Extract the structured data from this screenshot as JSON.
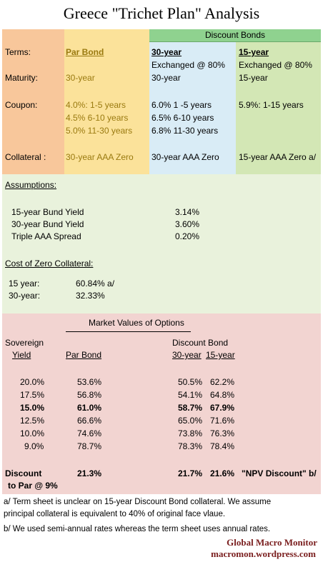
{
  "title": "Greece  \"Trichet Plan\" Analysis",
  "colors": {
    "labels_col": "#f8c79b",
    "par_col": "#fbe29a",
    "dc30_col": "#d9ecf6",
    "dc15_col": "#d3e7b5",
    "discount_header": "#8fd28f",
    "assumptions_bg": "#e9f2dc",
    "market_bg": "#f2d4d1"
  },
  "terms": {
    "header_discount": "Discount Bonds",
    "label_terms": "Terms:",
    "par_bond": "Par Bond",
    "dc30_label": "30-year",
    "dc15_label": "15-year",
    "dc30_exchanged": "Exchanged @  80%",
    "dc15_exchanged": "Exchanged @  80%",
    "label_maturity": "Maturity:",
    "par_maturity": "30-year",
    "dc30_maturity": "30-year",
    "dc15_maturity": "15-year",
    "label_coupon": "Coupon:",
    "par_coupons": [
      "4.0%:  1-5 years",
      "4.5%    6-10 years",
      "5.0%   11-30 years"
    ],
    "dc30_coupons": [
      "6.0%  1 -5 years",
      "6.5%  6-10 years",
      "6.8%  11-30 years"
    ],
    "dc15_coupon": "5.9%:  1-15 years",
    "label_collateral": "Collateral :",
    "par_collateral": "30-year AAA Zero",
    "dc30_collateral": "30-year AAA Zero",
    "dc15_collateral": "15-year AAA Zero a/"
  },
  "assumptions": {
    "heading": "Assumptions:",
    "rows": [
      {
        "label": "15-year Bund Yield",
        "value": "3.14%"
      },
      {
        "label": "30-year Bund Yield",
        "value": "3.60%"
      },
      {
        "label": "Triple AAA Spread",
        "value": "0.20%"
      }
    ],
    "cost_heading": "Cost of Zero Collateral:",
    "cost_rows": [
      {
        "label": "15 year:",
        "value": "60.84%  a/"
      },
      {
        "label": "30-year:",
        "value": "32.33%"
      }
    ]
  },
  "market": {
    "heading": "Market Values of Options",
    "sovereign": "Sovereign",
    "yield": "Yield",
    "par_bond": "Par Bond",
    "discount_bond": "Discount Bond",
    "col30": "30-year",
    "col15": "15-year",
    "rows": [
      {
        "yield": "20.0%",
        "par": "53.6%",
        "d30": "50.5%",
        "d15": "62.2%",
        "bold": false
      },
      {
        "yield": "17.5%",
        "par": "56.8%",
        "d30": "54.1%",
        "d15": "64.8%",
        "bold": false
      },
      {
        "yield": "15.0%",
        "par": "61.0%",
        "d30": "58.7%",
        "d15": "67.9%",
        "bold": true
      },
      {
        "yield": "12.5%",
        "par": "66.6%",
        "d30": "65.0%",
        "d15": "71.6%",
        "bold": false
      },
      {
        "yield": "10.0%",
        "par": "74.6%",
        "d30": "73.8%",
        "d15": "76.3%",
        "bold": false
      },
      {
        "yield": "9.0%",
        "par": "78.7%",
        "d30": "78.3%",
        "d15": "78.4%",
        "bold": false
      }
    ],
    "discount_label": "Discount",
    "discount_label2": "to Par @ 9%",
    "discount_par": "21.3%",
    "discount_d30": "21.7%",
    "discount_d15": "21.6%",
    "npv_note": "\"NPV Discount\"  b/"
  },
  "notes": {
    "a1": "a/ Term sheet is unclear on 15-year Discount Bond collateral.  We assume",
    "a2": "principal collateral is equivalent to 40% of original face vlaue.",
    "b": "b/ We used semi-annual rates whereas the term sheet uses annual rates."
  },
  "brand": {
    "name": "Global Macro Monitor",
    "url": "macromon.wordpress.com"
  }
}
